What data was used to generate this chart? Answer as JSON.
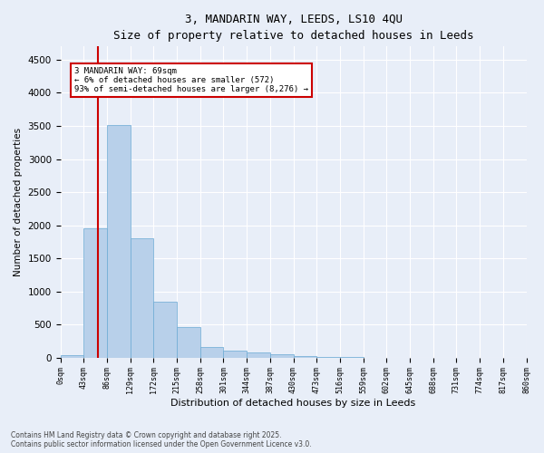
{
  "title_line1": "3, MANDARIN WAY, LEEDS, LS10 4QU",
  "title_line2": "Size of property relative to detached houses in Leeds",
  "xlabel": "Distribution of detached houses by size in Leeds",
  "ylabel": "Number of detached properties",
  "bin_labels": [
    "0sqm",
    "43sqm",
    "86sqm",
    "129sqm",
    "172sqm",
    "215sqm",
    "258sqm",
    "301sqm",
    "344sqm",
    "387sqm",
    "430sqm",
    "473sqm",
    "516sqm",
    "559sqm",
    "602sqm",
    "645sqm",
    "688sqm",
    "731sqm",
    "774sqm",
    "817sqm",
    "860sqm"
  ],
  "bar_values": [
    40,
    1950,
    3520,
    1800,
    850,
    455,
    160,
    110,
    75,
    50,
    20,
    10,
    5,
    2,
    1,
    1,
    0,
    0,
    0,
    0
  ],
  "bar_color": "#b8d0ea",
  "bar_edgecolor": "#6aaad4",
  "marker_label": "3 MANDARIN WAY: 69sqm\n← 6% of detached houses are smaller (572)\n93% of semi-detached houses are larger (8,276) →",
  "annotation_box_color": "#ffffff",
  "annotation_box_edgecolor": "#cc0000",
  "vline_color": "#cc0000",
  "vline_x": 1.62,
  "ylim": [
    0,
    4700
  ],
  "yticks": [
    0,
    500,
    1000,
    1500,
    2000,
    2500,
    3000,
    3500,
    4000,
    4500
  ],
  "background_color": "#e8eef8",
  "grid_color": "#ffffff",
  "footnote": "Contains HM Land Registry data © Crown copyright and database right 2025.\nContains public sector information licensed under the Open Government Licence v3.0."
}
